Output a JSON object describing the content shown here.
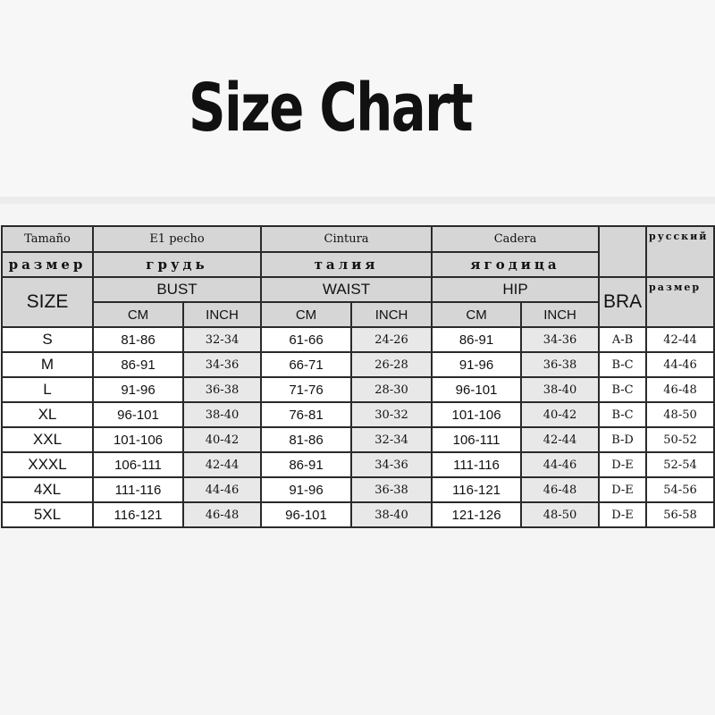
{
  "title": "Size Chart",
  "header": {
    "size_es": "Tamaño",
    "size_ru": "размер",
    "size_en": "SIZE",
    "bust_es": "E1 pecho",
    "bust_ru": "грудь",
    "bust_en": "BUST",
    "waist_es": "Cintura",
    "waist_ru": "талия",
    "waist_en": "WAIST",
    "hip_es": "Cadera",
    "hip_ru": "ягодица",
    "hip_en": "HIP",
    "bra": "BRA",
    "russian_label": "русский",
    "russian_size": "размер",
    "cm": "CM",
    "inch": "INCH"
  },
  "rows": [
    {
      "size": "S",
      "bust_cm": "81-86",
      "bust_in": "32-34",
      "waist_cm": "61-66",
      "waist_in": "24-26",
      "hip_cm": "86-91",
      "hip_in": "34-36",
      "bra": "A-B",
      "ru": "42-44"
    },
    {
      "size": "M",
      "bust_cm": "86-91",
      "bust_in": "34-36",
      "waist_cm": "66-71",
      "waist_in": "26-28",
      "hip_cm": "91-96",
      "hip_in": "36-38",
      "bra": "B-C",
      "ru": "44-46"
    },
    {
      "size": "L",
      "bust_cm": "91-96",
      "bust_in": "36-38",
      "waist_cm": "71-76",
      "waist_in": "28-30",
      "hip_cm": "96-101",
      "hip_in": "38-40",
      "bra": "B-C",
      "ru": "46-48"
    },
    {
      "size": "XL",
      "bust_cm": "96-101",
      "bust_in": "38-40",
      "waist_cm": "76-81",
      "waist_in": "30-32",
      "hip_cm": "101-106",
      "hip_in": "40-42",
      "bra": "B-C",
      "ru": "48-50"
    },
    {
      "size": "XXL",
      "bust_cm": "101-106",
      "bust_in": "40-42",
      "waist_cm": "81-86",
      "waist_in": "32-34",
      "hip_cm": "106-111",
      "hip_in": "42-44",
      "bra": "B-D",
      "ru": "50-52"
    },
    {
      "size": "XXXL",
      "bust_cm": "106-111",
      "bust_in": "42-44",
      "waist_cm": "86-91",
      "waist_in": "34-36",
      "hip_cm": "111-116",
      "hip_in": "44-46",
      "bra": "D-E",
      "ru": "52-54"
    },
    {
      "size": "4XL",
      "bust_cm": "111-116",
      "bust_in": "44-46",
      "waist_cm": "91-96",
      "waist_in": "36-38",
      "hip_cm": "116-121",
      "hip_in": "46-48",
      "bra": "D-E",
      "ru": "54-56"
    },
    {
      "size": "5XL",
      "bust_cm": "116-121",
      "bust_in": "46-48",
      "waist_cm": "96-101",
      "waist_in": "38-40",
      "hip_cm": "121-126",
      "hip_in": "48-50",
      "bra": "D-E",
      "ru": "56-58"
    }
  ]
}
